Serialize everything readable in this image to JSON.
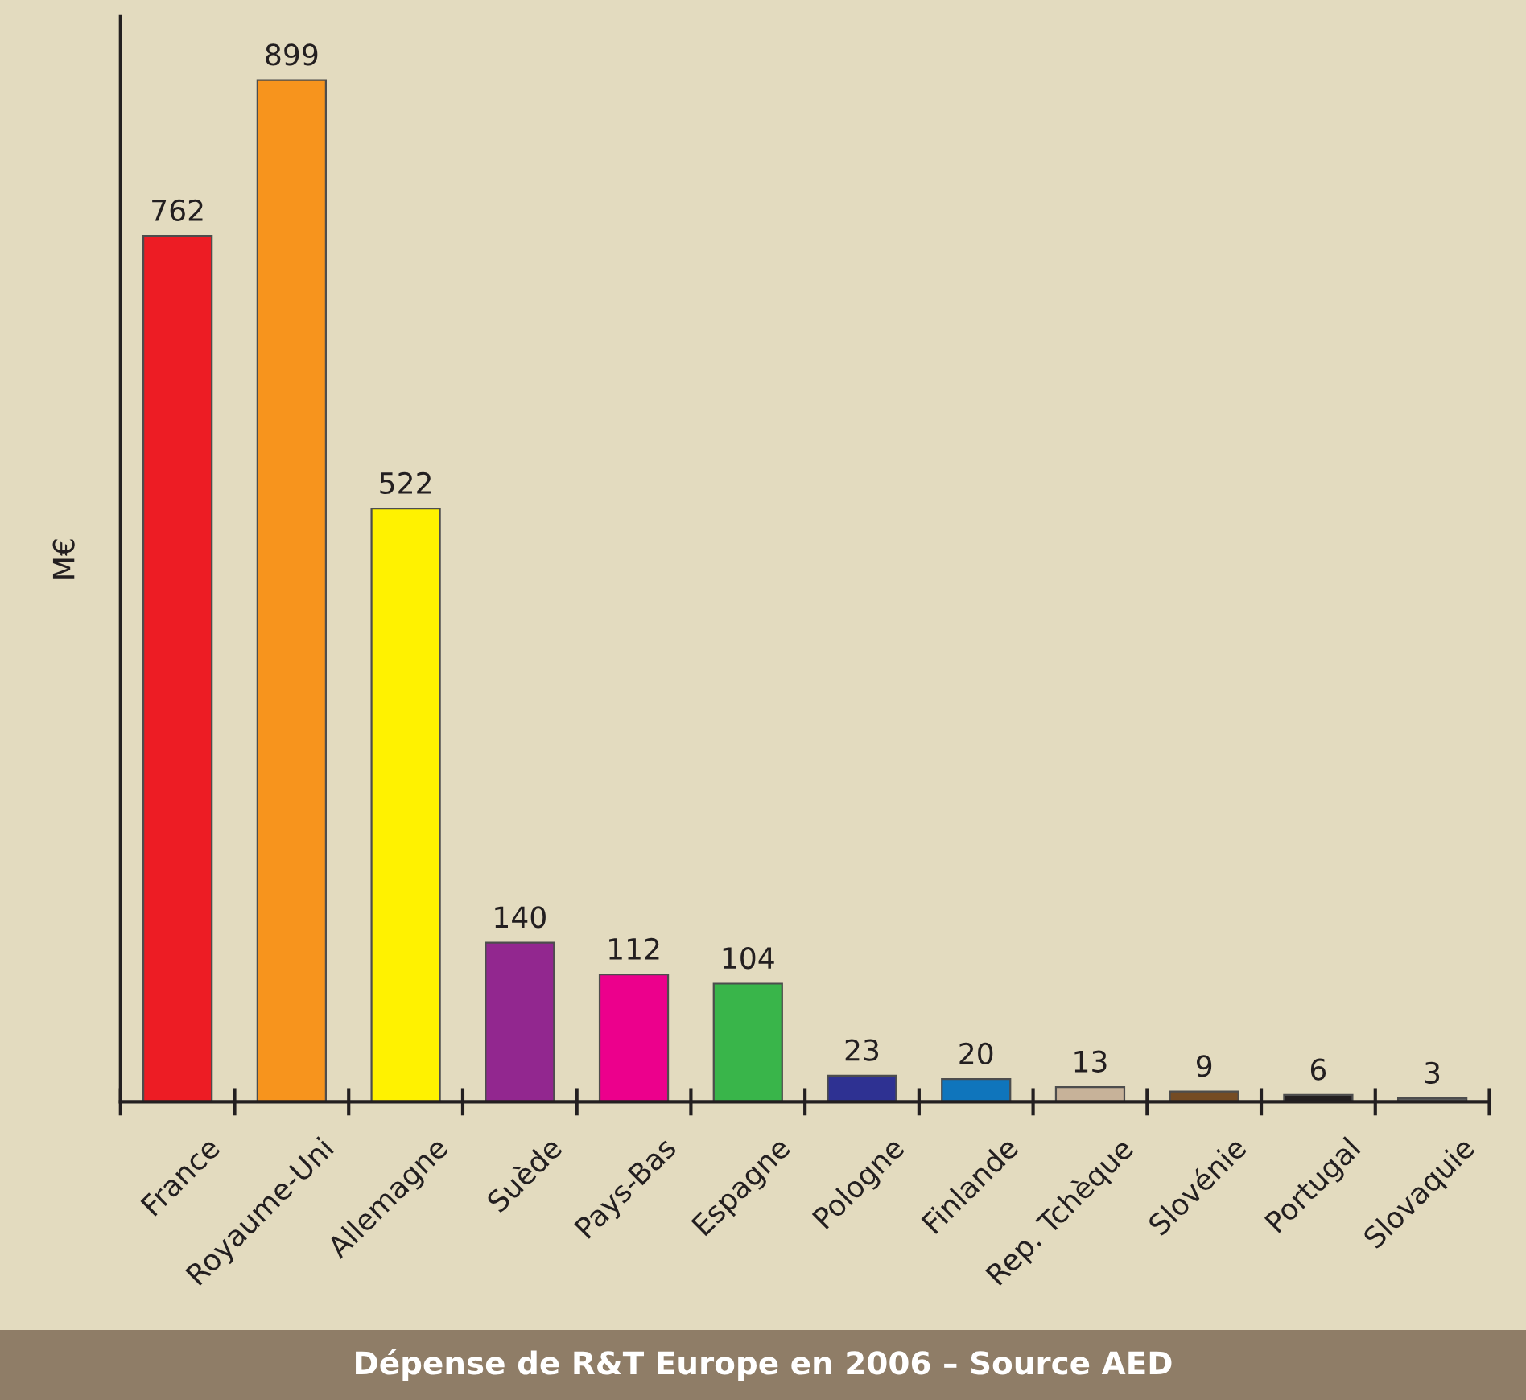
{
  "chart_data": {
    "type": "bar",
    "title": "Dépense de R&T Europe en 2006 – Source AED",
    "ylabel": "M€",
    "categories": [
      "France",
      "Royaume-Uni",
      "Allemagne",
      "Suède",
      "Pays-Bas",
      "Espagne",
      "Pologne",
      "Finlande",
      "Rep. Tchèque",
      "Slovénie",
      "Portugal",
      "Slovaquie"
    ],
    "values": [
      762,
      899,
      522,
      140,
      112,
      104,
      23,
      20,
      13,
      9,
      6,
      3
    ],
    "colors": [
      "#ed1c24",
      "#f7941d",
      "#fff200",
      "#92278f",
      "#ec008c",
      "#39b54a",
      "#2e3192",
      "#0f75bc",
      "#c7b299",
      "#754c24",
      "#231f20",
      "#636363"
    ],
    "data_labels": true,
    "tick_labels": "x"
  }
}
